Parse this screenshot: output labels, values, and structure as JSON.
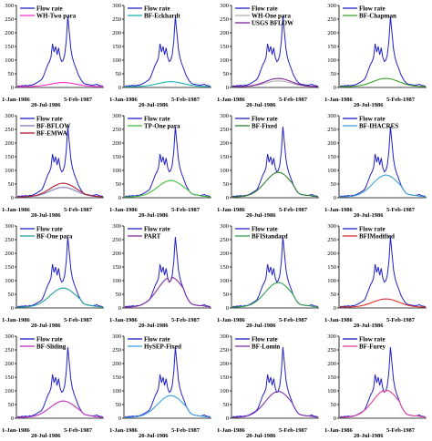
{
  "chart_data": [
    {
      "type": "line",
      "series": [
        {
          "name": "Flow rate",
          "color": "#2020c8"
        },
        {
          "name": "WH-Two para",
          "color": "#ff33cc"
        }
      ],
      "baseflow_level": 15,
      "ylim": [
        0,
        300
      ],
      "yticks": [
        0,
        50,
        100,
        150,
        200,
        250,
        300
      ],
      "x_dates": [
        "1-Jan-1986",
        "20-Jul-1986",
        "5-Feb-1987"
      ]
    },
    {
      "type": "line",
      "series": [
        {
          "name": "Flow rate",
          "color": "#2020c8"
        },
        {
          "name": "BF-Eckhardt",
          "color": "#20b0b0"
        }
      ],
      "baseflow_level": 18,
      "ylim": [
        0,
        300
      ],
      "yticks": [
        0,
        50,
        100,
        150,
        200,
        250,
        300
      ],
      "x_dates": [
        "1-Jan-1986",
        "20-Jul-1986",
        "5-Feb-1987"
      ]
    },
    {
      "type": "line",
      "series": [
        {
          "name": "Flow rate",
          "color": "#2020c8"
        },
        {
          "name": "WH-One para",
          "color": "#b0b0b0"
        },
        {
          "name": "USGS BFLOW",
          "color": "#8020a0"
        }
      ],
      "baseflow_level": 30,
      "ylim": [
        0,
        300
      ],
      "yticks": [
        0,
        50,
        100,
        150,
        200,
        250,
        300
      ],
      "x_dates": [
        "1-Jan-1986",
        "20-Jul-1986",
        "5-Feb-1987"
      ]
    },
    {
      "type": "line",
      "series": [
        {
          "name": "Flow rate",
          "color": "#2020c8"
        },
        {
          "name": "BF-Chapman",
          "color": "#40a030"
        }
      ],
      "baseflow_level": 30,
      "ylim": [
        0,
        300
      ],
      "yticks": [
        0,
        50,
        100,
        150,
        200,
        250,
        300
      ],
      "x_dates": [
        "1-Jan-1986",
        "20-Jul-1986",
        "5-Feb-1987"
      ]
    },
    {
      "type": "line",
      "series": [
        {
          "name": "Flow rate",
          "color": "#2020c8"
        },
        {
          "name": "BF-BFLOW",
          "color": "#8080c0"
        },
        {
          "name": "BF-EMWA",
          "color": "#b02030"
        }
      ],
      "baseflow_level": 50,
      "ylim": [
        0,
        300
      ],
      "yticks": [
        0,
        50,
        100,
        150,
        200,
        250,
        300
      ],
      "x_dates": [
        "1-Jan-1986",
        "20-Jul-1986",
        "5-Feb-1987"
      ]
    },
    {
      "type": "line",
      "series": [
        {
          "name": "Flow rate",
          "color": "#2020c8"
        },
        {
          "name": "TP-One para",
          "color": "#40c040"
        }
      ],
      "baseflow_level": 60,
      "ylim": [
        0,
        300
      ],
      "yticks": [
        0,
        50,
        100,
        150,
        200,
        250,
        300
      ],
      "x_dates": [
        "1-Jan-1986",
        "20-Jul-1986",
        "5-Feb-1987"
      ]
    },
    {
      "type": "line",
      "series": [
        {
          "name": "Flow rate",
          "color": "#2020c8"
        },
        {
          "name": "BF-Fixed",
          "color": "#308030"
        }
      ],
      "baseflow_level": 90,
      "ylim": [
        0,
        300
      ],
      "yticks": [
        0,
        50,
        100,
        150,
        200,
        250,
        300
      ],
      "x_dates": [
        "1-Jan-1986",
        "20-Jul-1986",
        "5-Feb-1987"
      ]
    },
    {
      "type": "line",
      "series": [
        {
          "name": "Flow rate",
          "color": "#2020c8"
        },
        {
          "name": "BF-IHACRES",
          "color": "#40a0d0"
        }
      ],
      "baseflow_level": 80,
      "ylim": [
        0,
        300
      ],
      "yticks": [
        0,
        50,
        100,
        150,
        200,
        250,
        300
      ],
      "x_dates": [
        "1-Jan-1986",
        "20-Jul-1986",
        "5-Feb-1987"
      ]
    },
    {
      "type": "line",
      "series": [
        {
          "name": "Flow rate",
          "color": "#2020c8"
        },
        {
          "name": "BF-One para",
          "color": "#20a0a0"
        }
      ],
      "baseflow_level": 70,
      "ylim": [
        0,
        300
      ],
      "yticks": [
        0,
        50,
        100,
        150,
        200,
        250,
        300
      ],
      "x_dates": [
        "1-Jan-1986",
        "20-Jul-1986",
        "5-Feb-1987"
      ]
    },
    {
      "type": "line",
      "series": [
        {
          "name": "Flow rate",
          "color": "#2020c8"
        },
        {
          "name": "PART",
          "color": "#8030a0"
        }
      ],
      "baseflow_level": 110,
      "ylim": [
        0,
        300
      ],
      "yticks": [
        0,
        50,
        100,
        150,
        200,
        250,
        300
      ],
      "x_dates": [
        "1-Jan-1986",
        "20-Jul-1986",
        "5-Feb-1987"
      ]
    },
    {
      "type": "line",
      "series": [
        {
          "name": "Flow rate",
          "color": "#2020c8"
        },
        {
          "name": "BFIStandard",
          "color": "#30a050"
        }
      ],
      "baseflow_level": 90,
      "ylim": [
        0,
        300
      ],
      "yticks": [
        0,
        50,
        100,
        150,
        200,
        250,
        300
      ],
      "x_dates": [
        "1-Jan-1986",
        "20-Jul-1986",
        "5-Feb-1987"
      ]
    },
    {
      "type": "line",
      "series": [
        {
          "name": "Flow rate",
          "color": "#2020c8"
        },
        {
          "name": "BFIModified",
          "color": "#e03030"
        }
      ],
      "baseflow_level": 30,
      "ylim": [
        0,
        300
      ],
      "yticks": [
        0,
        50,
        100,
        150,
        200,
        250,
        300
      ],
      "x_dates": [
        "1-Jan-1986",
        "20-Jul-1986",
        "5-Feb-1987"
      ]
    },
    {
      "type": "line",
      "series": [
        {
          "name": "Flow rate",
          "color": "#2020c8"
        },
        {
          "name": "BF-Sliding",
          "color": "#c030c0"
        }
      ],
      "baseflow_level": 60,
      "ylim": [
        0,
        300
      ],
      "yticks": [
        0,
        50,
        100,
        150,
        200,
        250,
        300
      ],
      "x_dates": [
        "1-Jan-1986",
        "20-Jul-1986",
        "5-Feb-1987"
      ]
    },
    {
      "type": "line",
      "series": [
        {
          "name": "Flow rate",
          "color": "#2020c8"
        },
        {
          "name": "HySEP-Fixed",
          "color": "#40a0e0"
        }
      ],
      "baseflow_level": 80,
      "ylim": [
        0,
        300
      ],
      "yticks": [
        0,
        50,
        100,
        150,
        200,
        250,
        300
      ],
      "x_dates": [
        "1-Jan-1986",
        "20-Jul-1986",
        "5-Feb-1987"
      ]
    },
    {
      "type": "line",
      "series": [
        {
          "name": "Flow rate",
          "color": "#2020c8"
        },
        {
          "name": "BF-Lomin",
          "color": "#8030b0"
        }
      ],
      "baseflow_level": 95,
      "ylim": [
        0,
        300
      ],
      "yticks": [
        0,
        50,
        100,
        150,
        200,
        250,
        300
      ],
      "x_dates": [
        "1-Jan-1986",
        "20-Jul-1986",
        "5-Feb-1987"
      ]
    },
    {
      "type": "line",
      "series": [
        {
          "name": "Flow rate",
          "color": "#2020c8"
        },
        {
          "name": "BF-Furey",
          "color": "#e040a0"
        }
      ],
      "baseflow_level": 100,
      "ylim": [
        0,
        300
      ],
      "yticks": [
        0,
        50,
        100,
        150,
        200,
        250,
        300
      ],
      "x_dates": [
        "1-Jan-1986",
        "20-Jul-1986",
        "5-Feb-1987"
      ]
    }
  ],
  "flow_profile": [
    5,
    6,
    5,
    7,
    6,
    8,
    7,
    6,
    9,
    8,
    10,
    12,
    15,
    18,
    22,
    25,
    30,
    40,
    55,
    70,
    85,
    95,
    110,
    160,
    130,
    150,
    120,
    145,
    110,
    95,
    100,
    120,
    170,
    260,
    200,
    140,
    110,
    90,
    75,
    60,
    45,
    35,
    25,
    18,
    14,
    12,
    11,
    10,
    9,
    8,
    9,
    10,
    12,
    8,
    7,
    6,
    5
  ]
}
